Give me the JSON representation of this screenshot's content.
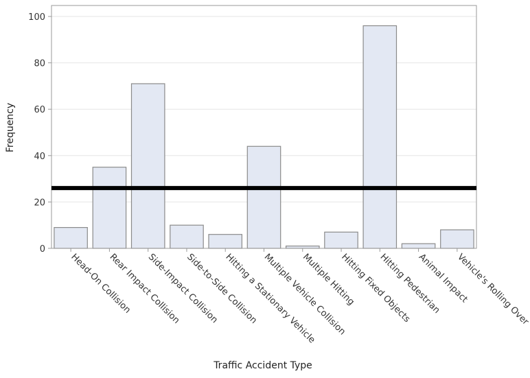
{
  "chart_data": {
    "type": "bar",
    "title": "",
    "xlabel": "Traffic Accident Type",
    "ylabel": "Frequency",
    "categories": [
      "Head-On Collision",
      "Rear Impact Collision",
      "Side-Impact Collision",
      "Side-to-Side Collision",
      "Hitting a Stationary Vehicle",
      "Multiple Vehicle Collision",
      "Multiple Hitting",
      "Hitting Fixed Objects",
      "Hitting Pedestrian",
      "Animal Impact",
      "Vehicle's Rolling Over"
    ],
    "values": [
      9,
      35,
      71,
      10,
      6,
      44,
      1,
      7,
      96,
      2,
      8
    ],
    "ylim": [
      0,
      100
    ],
    "yticks": [
      0,
      20,
      40,
      60,
      80,
      100
    ],
    "grid": true,
    "reference_line": 26,
    "colors": {
      "bar_fill": "#e3e8f3",
      "bar_stroke": "#8a8a8a",
      "reference_line": "#000000",
      "grid": "#e6e6e6",
      "axis": "#9a9a9a"
    }
  }
}
